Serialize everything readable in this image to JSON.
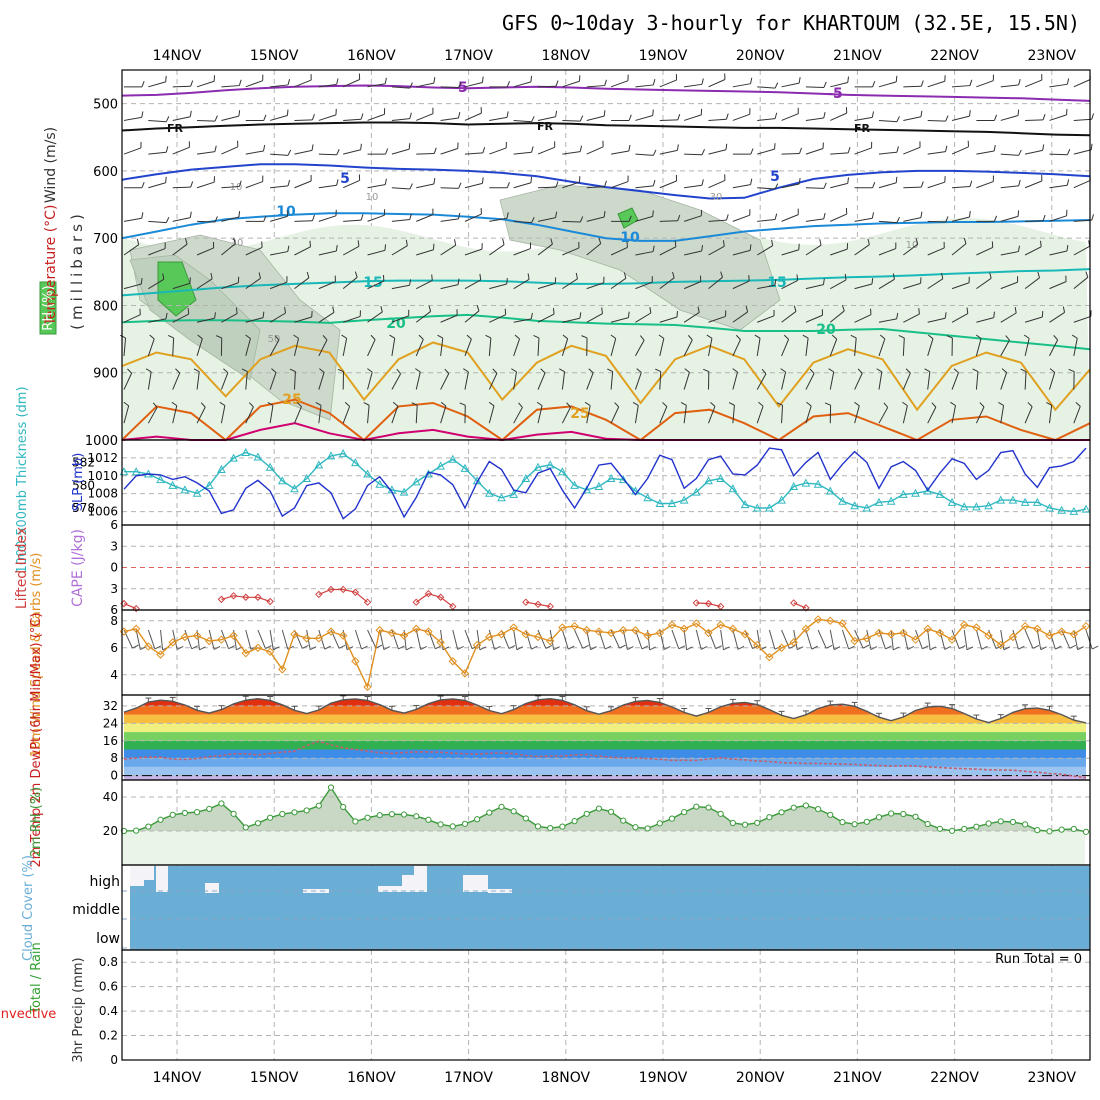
{
  "title": "GFS 0~10day 3-hourly for KHARTOUM (32.5E, 15.5N)",
  "colors": {
    "grid": "#b4b4b4",
    "frame": "#000000",
    "temperature": "#c81e1e",
    "rh_fill": "#58c858",
    "wind_label": "#333333",
    "slp": "#2233cc",
    "thickness": "#30b8c0",
    "lifted": "#d04040",
    "cape": "#b070d8",
    "wind10m": "#e09020",
    "cloud": "#6aaed6",
    "precip_total": "#30a030",
    "precip_conv": "#e02020",
    "rh2m": "#3c9a3c"
  },
  "chart_data": [
    {
      "type": "heatmap",
      "id": "upper_air",
      "x": [
        "14NOV",
        "15NOV",
        "16NOV",
        "17NOV",
        "18NOV",
        "19NOV",
        "20NOV",
        "21NOV",
        "22NOV",
        "23NOV"
      ],
      "ylabel": "(millibars)",
      "y_ticks": [
        "500",
        "600",
        "700",
        "800",
        "900",
        "1000"
      ],
      "axis_labels": {
        "wind": "Wind (m/s)",
        "temperature": "Temperature (°C)",
        "rh": "RH (%)"
      },
      "ylim": [
        450,
        1000
      ],
      "isotherm_labels": [
        "-5",
        "FR",
        "5",
        "10",
        "15",
        "20",
        "25"
      ],
      "rh_labels": [
        "10",
        "30",
        "50"
      ],
      "isotherms": [
        {
          "name": "-5",
          "color": "#8a2bb0",
          "y": [
            488,
            487,
            484,
            480,
            477,
            475,
            474,
            473,
            474,
            476,
            477,
            476,
            475,
            476,
            478,
            479,
            480,
            481,
            482,
            483,
            485,
            487,
            488,
            489,
            490,
            491,
            492,
            494,
            496
          ]
        },
        {
          "name": "FR",
          "color": "#111111",
          "y": [
            540,
            537,
            535,
            533,
            531,
            530,
            529,
            528,
            528,
            529,
            531,
            530,
            529,
            530,
            532,
            533,
            534,
            535,
            536,
            536,
            537,
            538,
            539,
            540,
            541,
            542,
            544,
            546,
            547
          ]
        },
        {
          "name": "5",
          "color": "#2244cc",
          "y": [
            613,
            605,
            598,
            594,
            590,
            590,
            592,
            595,
            597,
            598,
            600,
            603,
            608,
            616,
            624,
            630,
            636,
            641,
            640,
            625,
            612,
            606,
            602,
            600,
            600,
            601,
            603,
            605,
            608
          ]
        },
        {
          "name": "10",
          "color": "#1a8ad8",
          "y": [
            700,
            690,
            680,
            672,
            668,
            665,
            663,
            663,
            664,
            665,
            668,
            672,
            680,
            690,
            700,
            704,
            704,
            697,
            690,
            686,
            682,
            680,
            678,
            677,
            676,
            676,
            675,
            674,
            673
          ]
        },
        {
          "name": "15",
          "color": "#18b8b8",
          "y": [
            785,
            781,
            777,
            773,
            770,
            768,
            766,
            764,
            763,
            763,
            763,
            764,
            766,
            768,
            768,
            767,
            765,
            764,
            763,
            762,
            760,
            758,
            757,
            755,
            753,
            751,
            749,
            748,
            746
          ]
        },
        {
          "name": "20",
          "color": "#18c088",
          "y": [
            825,
            823,
            822,
            822,
            823,
            824,
            826,
            822,
            819,
            816,
            814,
            818,
            823,
            825,
            827,
            828,
            829,
            833,
            838,
            838,
            838,
            836,
            835,
            840,
            845,
            850,
            855,
            860,
            865
          ]
        }
      ],
      "series_25": {
        "name": "25",
        "color": "#e0a020",
        "y": [
          890,
          870,
          880,
          935,
          880,
          860,
          870,
          940,
          880,
          855,
          870,
          940,
          885,
          860,
          875,
          945,
          880,
          860,
          880,
          950,
          885,
          865,
          880,
          955,
          890,
          870,
          885,
          955,
          895
        ]
      },
      "series_30": {
        "name": "30",
        "color": "#e06010",
        "y": [
          1000,
          950,
          960,
          1000,
          950,
          940,
          960,
          1000,
          950,
          945,
          965,
          1000,
          955,
          950,
          970,
          1000,
          960,
          955,
          975,
          1000,
          965,
          960,
          980,
          1000,
          970,
          965,
          985,
          1000,
          975
        ]
      },
      "series_35": {
        "name": "35",
        "color": "#d00070",
        "y": [
          1000,
          995,
          1000,
          1000,
          985,
          975,
          990,
          1000,
          990,
          985,
          995,
          1000,
          992,
          988,
          998,
          1000,
          1000,
          1000,
          1000,
          1000,
          1000,
          1000,
          1000,
          1000,
          1000,
          1000,
          1000,
          1000,
          1000
        ]
      },
      "wind_barbs": "3-hourly barbs, every 50 mb"
    },
    {
      "type": "line",
      "id": "slp_thickness",
      "y1label": "SLP (mb)",
      "y1_ticks": [
        "1006",
        "1008",
        "1010",
        "1012"
      ],
      "y2label": "1000-500mb Thickness (dm)",
      "y2_ticks": [
        "578",
        "580",
        "582"
      ],
      "series": [
        {
          "name": "SLP",
          "color": "#2233cc",
          "values": [
            1008.5,
            1010,
            1010.2,
            1010.1,
            1009.6,
            1009.9,
            1009.2,
            1008.3,
            1005.8,
            1006.2,
            1008.6,
            1009.5,
            1008.3,
            1005.5,
            1006.4,
            1008.9,
            1009.2,
            1008.1,
            1005.2,
            1006.3,
            1008.9,
            1009.9,
            1008.2,
            1005.4,
            1007.6,
            1010.4,
            1010.1,
            1009.0,
            1006.4,
            1009.3,
            1011.6,
            1010.7,
            1008.4,
            1008.1,
            1010.3,
            1010.8,
            1008.4,
            1006.4,
            1008.6,
            1011.2,
            1011.4,
            1009.7,
            1007.9,
            1009.7,
            1012.3,
            1011.8,
            1008.6,
            1009.7,
            1011.8,
            1012.2,
            1010.2,
            1010.1,
            1011.2,
            1013.1,
            1012.9,
            1010.0,
            1011.5,
            1012.6,
            1009.6,
            1011.3,
            1012.7,
            1011.5,
            1008.6,
            1011.0,
            1011.6,
            1010.6,
            1008.4,
            1010.3,
            1011.9,
            1011.4,
            1009.6,
            1010.6,
            1012.6,
            1012.8,
            1010.2,
            1008.7,
            1010.9,
            1011.1,
            1011.6,
            1013.1
          ]
        },
        {
          "name": "Thickness",
          "color": "#30b8c0",
          "values": [
            581.2,
            581.2,
            581.0,
            580.5,
            580.0,
            579.6,
            579.3,
            580.0,
            581.4,
            582.4,
            582.9,
            582.5,
            581.6,
            580.4,
            579.7,
            580.6,
            581.8,
            582.6,
            582.8,
            582.0,
            581.0,
            580.1,
            579.6,
            579.4,
            580.3,
            581.0,
            581.7,
            582.3,
            581.5,
            580.4,
            579.3,
            578.9,
            579.2,
            580.6,
            581.6,
            581.8,
            581.2,
            580.0,
            579.6,
            579.9,
            580.6,
            580.5,
            579.5,
            578.9,
            578.4,
            578.4,
            578.7,
            579.4,
            580.4,
            580.6,
            579.7,
            578.3,
            578.0,
            578.0,
            578.7,
            579.9,
            580.2,
            580.1,
            579.5,
            578.6,
            578.2,
            578.0,
            578.5,
            578.6,
            579.2,
            579.3,
            579.5,
            579.2,
            578.5,
            578.1,
            578.1,
            578.2,
            578.7,
            578.7,
            578.5,
            578.5,
            578.0,
            577.8,
            577.7,
            577.9
          ]
        }
      ]
    },
    {
      "type": "line",
      "id": "lifted_cape",
      "y1label": "Lifted Index",
      "y1_ticks": [
        "-6",
        "-3",
        "0",
        "3",
        "6"
      ],
      "y2label": "CAPE (J/kg)",
      "series": [
        {
          "name": "Lifted Index",
          "color": "#d04040",
          "values": [
            5.1,
            5.8,
            null,
            null,
            null,
            null,
            null,
            null,
            4.5,
            4.0,
            4.2,
            4.2,
            4.8,
            null,
            null,
            null,
            3.8,
            3.1,
            3.1,
            3.5,
            4.9,
            null,
            null,
            null,
            4.9,
            3.7,
            4.2,
            5.5,
            null,
            null,
            null,
            null,
            null,
            4.9,
            5.2,
            5.5,
            null,
            null,
            null,
            null,
            null,
            null,
            null,
            null,
            null,
            null,
            null,
            5.0,
            5.1,
            5.5,
            null,
            null,
            null,
            null,
            null,
            5.0,
            5.7,
            null,
            null,
            null,
            null,
            null,
            null,
            null,
            null,
            null,
            null,
            null,
            null,
            null,
            null,
            null,
            null,
            null,
            null,
            null,
            null,
            null,
            null,
            null
          ]
        }
      ]
    },
    {
      "type": "line",
      "id": "wind10m",
      "ylabel": "10m Wind Speed & Barbs (m/s)",
      "y_ticks": [
        "4",
        "6",
        "8"
      ],
      "series": [
        {
          "name": "Speed",
          "color": "#e09020",
          "values": [
            7.2,
            7.4,
            6.1,
            5.5,
            6.4,
            6.8,
            6.9,
            6.5,
            6.6,
            6.9,
            5.6,
            6.0,
            5.7,
            4.4,
            7.0,
            6.7,
            6.7,
            7.2,
            6.9,
            5.0,
            3.1,
            7.3,
            7.1,
            6.9,
            7.4,
            7.2,
            6.4,
            5.0,
            4.1,
            6.2,
            6.8,
            7.0,
            7.5,
            7.0,
            6.8,
            6.5,
            7.5,
            7.6,
            7.3,
            7.2,
            7.1,
            7.3,
            7.3,
            6.9,
            7.1,
            7.7,
            7.4,
            7.8,
            7.1,
            7.7,
            7.4,
            7.0,
            6.2,
            5.3,
            6.0,
            6.4,
            7.4,
            8.1,
            8.0,
            7.8,
            6.5,
            6.7,
            7.1,
            7.0,
            7.1,
            6.6,
            7.4,
            7.1,
            6.6,
            7.7,
            7.5,
            6.9,
            6.2,
            6.8,
            7.6,
            7.4,
            6.9,
            7.2,
            7.0,
            7.6
          ]
        }
      ]
    },
    {
      "type": "line",
      "id": "temp2m",
      "ylabel": "2m Temp 2m DewPt (6hr Min/Max) (°C)",
      "y_ticks": [
        "0",
        "8",
        "16",
        "24",
        "32"
      ],
      "series": [
        {
          "name": "2m Temp",
          "color": "#555555",
          "values": [
            29.1,
            31.0,
            33.8,
            34.6,
            34.1,
            32.4,
            30.0,
            28.7,
            30.3,
            32.9,
            34.6,
            35.3,
            34.5,
            32.5,
            30.0,
            28.5,
            30.1,
            33.3,
            34.8,
            35.2,
            34.5,
            32.6,
            30.0,
            28.7,
            30.4,
            33.0,
            34.7,
            35.2,
            34.5,
            32.4,
            29.9,
            28.4,
            30.3,
            33.1,
            34.8,
            35.3,
            34.5,
            32.5,
            29.8,
            28.2,
            29.8,
            32.4,
            34.0,
            34.5,
            33.6,
            31.5,
            29.0,
            27.3,
            29.0,
            31.6,
            33.2,
            33.6,
            32.6,
            30.3,
            27.7,
            26.2,
            27.9,
            30.8,
            32.4,
            32.8,
            31.8,
            29.5,
            26.8,
            25.2,
            26.9,
            29.9,
            31.5,
            31.8,
            30.8,
            28.5,
            26.0,
            24.4,
            26.2,
            29.0,
            30.7,
            31.0,
            30.0,
            28.0,
            25.5,
            24.2
          ]
        },
        {
          "name": "2m DewPt",
          "color": "#c06070",
          "values": [
            7.6,
            8.2,
            8.5,
            8.5,
            7.6,
            7.4,
            7.8,
            8.7,
            9.3,
            10.0,
            10.0,
            9.5,
            10.2,
            10.8,
            11.2,
            13.8,
            15.7,
            14.1,
            12.8,
            12.0,
            11.3,
            10.5,
            10.2,
            10.6,
            10.9,
            10.9,
            10.7,
            10.3,
            10.0,
            9.9,
            10.2,
            10.4,
            10.1,
            9.2,
            8.8,
            9.0,
            9.0,
            9.5,
            9.6,
            9.0,
            8.4,
            8.2,
            8.1,
            7.8,
            7.5,
            7.0,
            7.1,
            7.0,
            7.6,
            8.2,
            7.6,
            7.2,
            6.7,
            6.5,
            6.0,
            5.8,
            5.6,
            5.6,
            5.5,
            5.3,
            5.1,
            4.8,
            4.6,
            4.4,
            4.5,
            4.4,
            4.0,
            3.7,
            3.4,
            3.2,
            3.0,
            2.7,
            2.6,
            2.5,
            2.0,
            1.6,
            1.0,
            0.6,
            -0.2,
            -1.0
          ]
        }
      ]
    },
    {
      "type": "area",
      "id": "rh2m",
      "ylabel": "2m RH (%)",
      "y_ticks": [
        "20",
        "40"
      ],
      "series": [
        {
          "name": "2m RH",
          "color": "#3c9a3c",
          "values": [
            20.0,
            20.2,
            22.6,
            26.6,
            29.5,
            30.6,
            31.1,
            33.0,
            36.2,
            30.1,
            22.1,
            24.6,
            27.8,
            30.0,
            31.0,
            32.1,
            34.9,
            45.6,
            34.1,
            25.6,
            27.8,
            29.3,
            29.9,
            29.7,
            28.7,
            26.6,
            23.9,
            22.7,
            24.2,
            26.9,
            30.8,
            34.2,
            31.6,
            27.4,
            22.7,
            21.7,
            22.6,
            25.8,
            30.1,
            33.2,
            31.3,
            26.1,
            22.2,
            21.5,
            24.5,
            27.3,
            31.1,
            34.3,
            33.8,
            30.1,
            24.7,
            23.7,
            24.8,
            28.1,
            31.0,
            33.7,
            35.0,
            32.9,
            29.5,
            25.2,
            24.0,
            25.4,
            28.1,
            30.3,
            30.0,
            28.4,
            24.1,
            21.3,
            20.1,
            21.2,
            22.5,
            24.4,
            25.7,
            25.3,
            23.9,
            20.5,
            19.8,
            20.8,
            21.2,
            19.5
          ]
        }
      ]
    },
    {
      "type": "heatmap",
      "id": "cloud",
      "ylabel": "Cloud Cover (%)",
      "categories": [
        "high",
        "middle",
        "low"
      ]
    },
    {
      "type": "bar",
      "id": "precip",
      "ylabel": "3hr Precip (mm)",
      "legend": [
        "Total / Rain",
        "Convective"
      ],
      "y_ticks": [
        "0",
        "0.2",
        "0.4",
        "0.6",
        "0.8"
      ],
      "annotation": "Run Total = 0",
      "values": [
        0,
        0,
        0,
        0,
        0,
        0,
        0,
        0,
        0,
        0
      ]
    }
  ]
}
